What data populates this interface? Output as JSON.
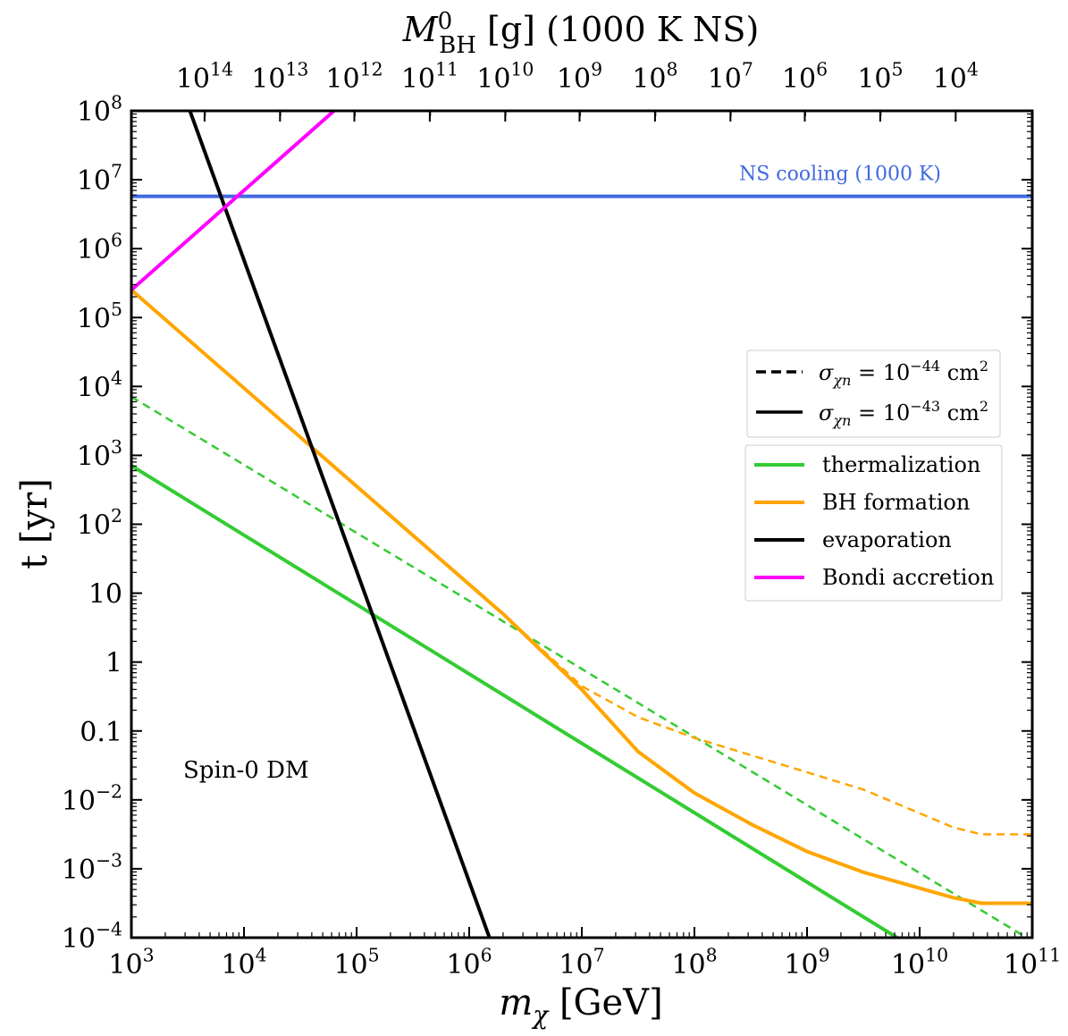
{
  "chart_data": {
    "type": "line",
    "xscale": "log",
    "yscale": "log",
    "xlim_exp": [
      3,
      11
    ],
    "ylim_exp": [
      -4,
      8
    ],
    "xlabel": "m_χ [GeV]",
    "ylabel": "t [yr]",
    "top_axis_label": "M_BH^0 [g] (1000 K NS)",
    "x_tick_labels": [
      "10^3",
      "10^4",
      "10^5",
      "10^6",
      "10^7",
      "10^8",
      "10^9",
      "10^10",
      "10^11"
    ],
    "y_tick_labels": [
      "10^-4",
      "10^-3",
      "10^-2",
      "0.1",
      "1",
      "10",
      "10^2",
      "10^3",
      "10^4",
      "10^5",
      "10^6",
      "10^7",
      "10^8"
    ],
    "top_tick_labels": [
      "10^14",
      "10^13",
      "10^12",
      "10^11",
      "10^10",
      "10^9",
      "10^8",
      "10^7",
      "10^6",
      "10^5",
      "10^4"
    ],
    "top_tick_positions_log_mchi": [
      3.65,
      4.32,
      4.98,
      5.65,
      6.32,
      6.98,
      7.65,
      8.32,
      8.98,
      9.65,
      10.32
    ],
    "annotations": {
      "ns_cooling": "NS cooling (1000 K)",
      "spin": "Spin-0 DM"
    },
    "ns_cooling_log_t": 6.76,
    "series": [
      {
        "name": "thermalization",
        "style": "solid",
        "color": "#33cc33",
        "log_x": [
          3,
          9.8
        ],
        "log_y": [
          2.85,
          -4.0
        ]
      },
      {
        "name": "thermalization σ=1e-44",
        "style": "dashed",
        "color": "#33cc33",
        "log_x": [
          3,
          10.95
        ],
        "log_y": [
          3.85,
          -4.0
        ]
      },
      {
        "name": "BH formation",
        "style": "solid",
        "color": "#ffa500",
        "log_x": [
          3,
          6.3,
          7.0,
          7.5,
          8.0,
          8.5,
          9.0,
          9.5,
          10.3,
          10.55,
          10.7,
          11
        ],
        "log_y": [
          5.4,
          0.7,
          -0.4,
          -1.3,
          -1.9,
          -2.35,
          -2.75,
          -3.05,
          -3.42,
          -3.5,
          -3.5,
          -3.5
        ]
      },
      {
        "name": "BH formation σ=1e-44",
        "style": "dashed",
        "color": "#ffa500",
        "log_x": [
          6.3,
          7.0,
          7.5,
          8.0,
          8.5,
          9.0,
          9.5,
          10.3,
          10.55,
          10.7,
          11
        ],
        "log_y": [
          0.7,
          -0.35,
          -0.8,
          -1.1,
          -1.35,
          -1.6,
          -1.85,
          -2.4,
          -2.5,
          -2.5,
          -2.5
        ]
      },
      {
        "name": "evaporation",
        "style": "solid",
        "color": "#000000",
        "log_x": [
          3.52,
          6.18
        ],
        "log_y": [
          8.0,
          -4.0
        ]
      },
      {
        "name": "Bondi accretion",
        "style": "solid",
        "color": "#ff00ff",
        "log_x": [
          3,
          4.8
        ],
        "log_y": [
          5.4,
          8.0
        ]
      }
    ],
    "legend_sigma": [
      {
        "style": "dashed",
        "label": "σ_χn = 10^-44 cm^2"
      },
      {
        "style": "solid",
        "label": "σ_χn = 10^-43 cm^2"
      }
    ],
    "legend_curves": [
      {
        "label": "thermalization",
        "color": "#33cc33"
      },
      {
        "label": "BH formation",
        "color": "#ffa500"
      },
      {
        "label": "evaporation",
        "color": "#000000"
      },
      {
        "label": "Bondi accretion",
        "color": "#ff00ff"
      }
    ],
    "legend_placement": "right-middle",
    "colors": {
      "ns_cooling": "#4169e1"
    }
  }
}
